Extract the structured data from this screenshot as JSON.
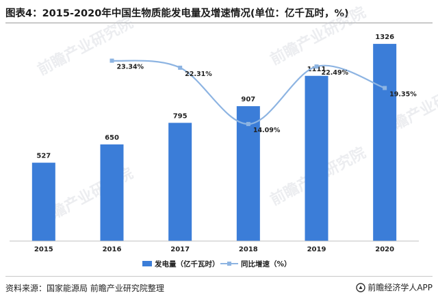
{
  "title": "图表4：2015-2020年中国生物质能发电量及增速情况(单位：亿千瓦时，%)",
  "source": "资料来源：国家能源局 前瞻产业研究院整理",
  "brand": "前瞻经济学人APP",
  "watermark": "前瞻产业研究院",
  "colors": {
    "bar": "#3b7dd8",
    "line": "#8db4e2",
    "axis": "#bfbfbf"
  },
  "chart_data": {
    "type": "bar",
    "categories": [
      "2015",
      "2016",
      "2017",
      "2018",
      "2019",
      "2020"
    ],
    "series": [
      {
        "name": "发电量（亿千瓦时）",
        "type": "bar",
        "values": [
          527,
          650,
          795,
          907,
          1111,
          1326
        ],
        "labels": [
          "527",
          "650",
          "795",
          "907",
          "1111",
          "1326"
        ]
      },
      {
        "name": "同比增速（%）",
        "type": "line",
        "values": [
          null,
          23.34,
          22.31,
          14.09,
          22.49,
          19.35
        ],
        "labels": [
          "",
          "23.34%",
          "22.31%",
          "14.09%",
          "22.49%",
          "19.35%"
        ]
      }
    ],
    "ylim": [
      0,
      1400
    ],
    "y2lim": [
      6,
      26
    ],
    "legend": "bottom",
    "grid": false
  }
}
